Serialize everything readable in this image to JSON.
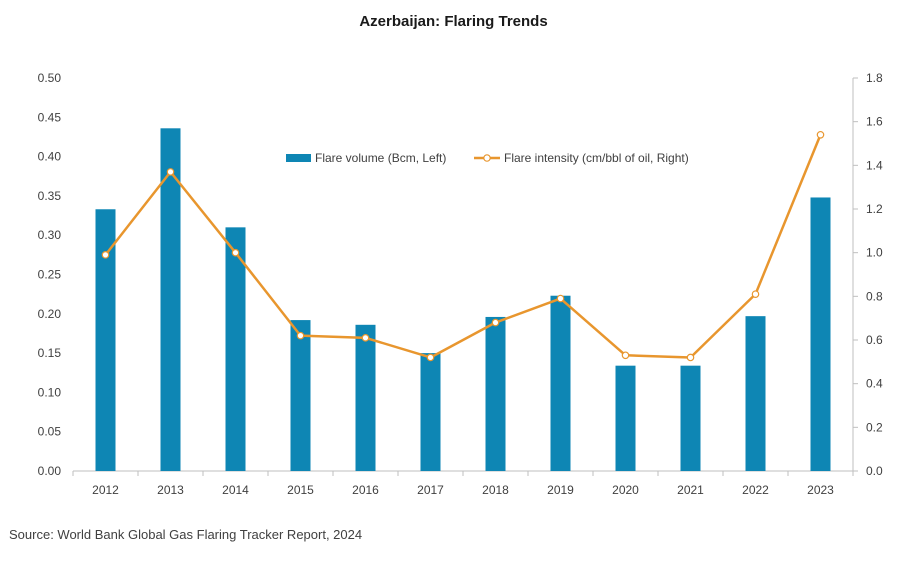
{
  "chart_data": {
    "type": "bar",
    "title": "Azerbaijan: Flaring Trends",
    "categories": [
      "2012",
      "2013",
      "2014",
      "2015",
      "2016",
      "2017",
      "2018",
      "2019",
      "2020",
      "2021",
      "2022",
      "2023"
    ],
    "series": [
      {
        "name": "Flare volume (Bcm, Left)",
        "type": "bar",
        "axis": "left",
        "color": "#0e86b4",
        "values": [
          0.333,
          0.436,
          0.31,
          0.192,
          0.186,
          0.15,
          0.196,
          0.223,
          0.134,
          0.134,
          0.197,
          0.348
        ]
      },
      {
        "name": "Flare intensity (cm/bbl of oil, Right)",
        "type": "line",
        "axis": "right",
        "color": "#e8962e",
        "values": [
          0.99,
          1.37,
          1.0,
          0.62,
          0.61,
          0.52,
          0.68,
          0.79,
          0.53,
          0.52,
          0.81,
          1.54
        ]
      }
    ],
    "y_left": {
      "range": [
        0,
        0.5
      ],
      "ticks": [
        "0.00",
        "0.05",
        "0.10",
        "0.15",
        "0.20",
        "0.25",
        "0.30",
        "0.35",
        "0.40",
        "0.45",
        "0.50"
      ]
    },
    "y_right": {
      "range": [
        0,
        1.8
      ],
      "ticks": [
        "0.0",
        "0.2",
        "0.4",
        "0.6",
        "0.8",
        "1.0",
        "1.2",
        "1.4",
        "1.6",
        "1.8"
      ]
    },
    "grid": false,
    "legend_position": "top-center"
  },
  "source": "Source: World Bank Global Gas Flaring Tracker Report, 2024"
}
